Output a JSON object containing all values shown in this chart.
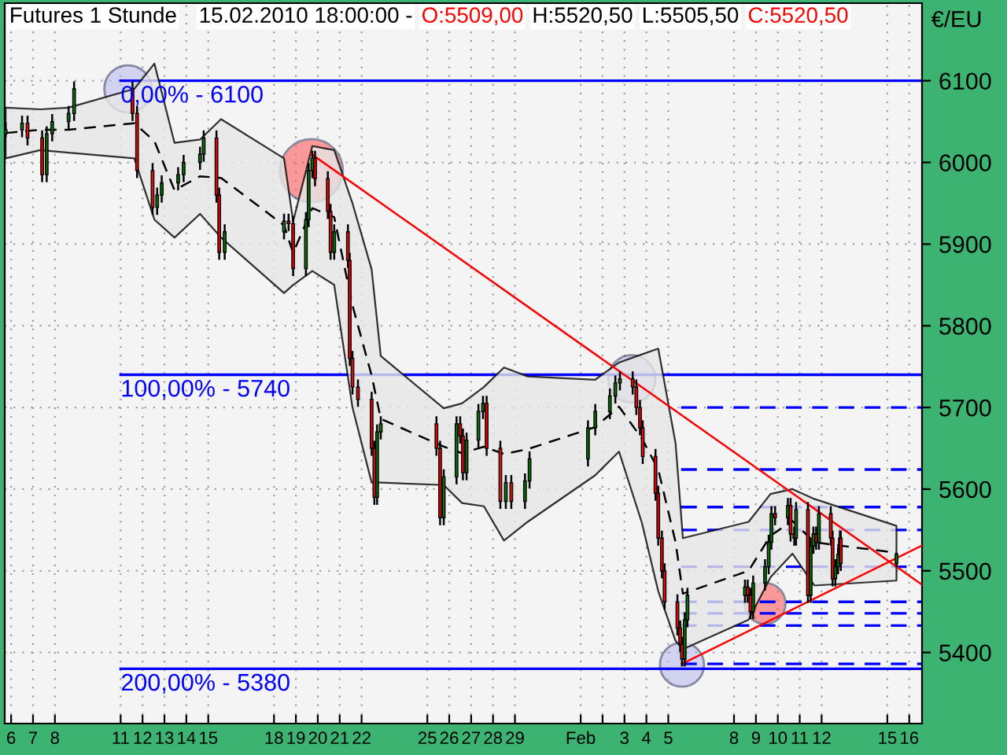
{
  "chart_data": {
    "type": "candlestick",
    "title": "Futures 1 Stunde",
    "subtitle": "15.02.2010 18:00:00 -",
    "annotations": [
      "O:5509,00",
      "H:5520,50",
      "L:5505,50",
      "C:5520,50",
      {
        "text": "0,00% - 6100",
        "x": "2010-01-11",
        "y": 6100
      },
      {
        "text": "100,00% - 5740",
        "x": "2010-01-11",
        "y": 5740
      },
      {
        "text": "200,00% - 5380",
        "x": "2010-01-11",
        "y": 5380
      }
    ],
    "ylabel": "€/EU",
    "x": [
      "2010-01-05T18:00",
      "2010-01-06T12:00",
      "2010-01-06T18:00",
      "2010-01-07T10:00",
      "2010-01-07T15:00",
      "2010-01-07T21:00",
      "2010-01-08T15:00",
      "2010-01-08T21:00",
      "2010-01-11T13:00",
      "2010-01-11T18:00",
      "2010-01-12T11:00",
      "2010-01-12T16:00",
      "2010-01-12T21:00",
      "2010-01-13T15:00",
      "2010-01-13T21:00",
      "2010-01-14T15:00",
      "2010-01-14T19:00",
      "2010-01-15T09:00",
      "2010-01-15T12:00",
      "2010-01-15T18:00",
      "2010-01-18T11:00",
      "2010-01-18T16:00",
      "2010-01-18T21:00",
      "2010-01-19T11:00",
      "2010-01-19T14:00",
      "2010-01-19T18:00",
      "2010-01-19T21:00",
      "2010-01-20T11:00",
      "2010-01-20T14:00",
      "2010-01-20T18:00",
      "2010-01-21T09:00",
      "2010-01-21T11:00",
      "2010-01-21T14:00",
      "2010-01-21T20:00",
      "2010-01-22T11:00",
      "2010-01-22T14:00",
      "2010-01-22T17:00",
      "2010-01-22T21:00",
      "2010-01-25T10:00",
      "2010-01-25T14:00",
      "2010-01-25T18:00",
      "2010-01-26T08:00",
      "2010-01-26T12:00",
      "2010-01-26T15:00",
      "2010-01-26T19:00",
      "2010-01-27T08:00",
      "2010-01-27T13:00",
      "2010-01-27T17:00",
      "2010-01-28T08:00",
      "2010-01-28T14:00",
      "2010-01-28T20:00",
      "2010-01-29T11:00",
      "2010-01-29T16:00",
      "2010-02-01T08:00",
      "2010-02-01T16:00",
      "2010-02-02T08:00",
      "2010-02-02T14:00",
      "2010-02-02T19:00",
      "2010-02-03T09:00",
      "2010-02-03T13:00",
      "2010-02-03T17:00",
      "2010-02-03T20:00",
      "2010-02-04T10:00",
      "2010-02-04T13:00",
      "2010-02-04T17:00",
      "2010-02-04T20:00",
      "2010-02-05T10:00",
      "2010-02-05T13:00",
      "2010-02-05T15:00",
      "2010-02-05T18:00",
      "2010-02-05T21:00",
      "2010-02-08T12:00",
      "2010-02-08T15:00",
      "2010-02-08T18:00",
      "2010-02-08T21:00",
      "2010-02-09T10:00",
      "2010-02-09T14:00",
      "2010-02-09T17:00",
      "2010-02-09T21:00",
      "2010-02-10T11:00",
      "2010-02-10T14:00",
      "2010-02-10T18:00",
      "2010-02-10T20:00",
      "2010-02-11T09:00",
      "2010-02-11T12:00",
      "2010-02-11T15:00",
      "2010-02-11T18:00",
      "2010-02-11T21:00",
      "2010-02-12T10:00",
      "2010-02-12T12:00",
      "2010-02-12T15:00",
      "2010-02-12T18:00",
      "2010-02-12T20:00",
      "2010-02-12T21:00",
      "2010-02-15T10:00"
    ],
    "ohlc": [
      [
        6035,
        6048,
        6032,
        6040
      ],
      [
        6040,
        6056,
        6032,
        6048
      ],
      [
        6048,
        6056,
        6022,
        6030
      ],
      [
        6030,
        6038,
        5977,
        5985
      ],
      [
        5985,
        6043,
        5977,
        6035
      ],
      [
        6035,
        6058,
        6027,
        6050
      ],
      [
        6050,
        6068,
        6042,
        6060
      ],
      [
        6060,
        6098,
        6052,
        6090
      ],
      [
        6090,
        6098,
        6052,
        6060
      ],
      [
        6060,
        6068,
        5982,
        5990
      ],
      [
        5990,
        5998,
        5937,
        5945
      ],
      [
        5945,
        5968,
        5937,
        5960
      ],
      [
        5960,
        5983,
        5952,
        5975
      ],
      [
        5975,
        5993,
        5967,
        5985
      ],
      [
        5985,
        6008,
        5977,
        6000
      ],
      [
        6000,
        6018,
        5992,
        6010
      ],
      [
        6010,
        6038,
        6002,
        6030
      ],
      [
        6030,
        6038,
        5952,
        5960
      ],
      [
        5960,
        5968,
        5882,
        5890
      ],
      [
        5890,
        5923,
        5882,
        5915
      ],
      [
        5915,
        5936,
        5907,
        5928
      ],
      [
        5928,
        5936,
        5917,
        5925
      ],
      [
        5925,
        5933,
        5862,
        5870
      ],
      [
        5870,
        5938,
        5862,
        5930
      ],
      [
        5930,
        5998,
        5922,
        5990
      ],
      [
        5990,
        6013,
        5982,
        6005
      ],
      [
        6005,
        6013,
        5972,
        5980
      ],
      [
        5980,
        5988,
        5932,
        5940
      ],
      [
        5940,
        5948,
        5882,
        5890
      ],
      [
        5890,
        5923,
        5882,
        5915
      ],
      [
        5915,
        5923,
        5872,
        5880
      ],
      [
        5880,
        5888,
        5752,
        5760
      ],
      [
        5760,
        5768,
        5717,
        5725
      ],
      [
        5725,
        5733,
        5702,
        5710
      ],
      [
        5710,
        5718,
        5642,
        5650
      ],
      [
        5650,
        5658,
        5582,
        5590
      ],
      [
        5590,
        5678,
        5582,
        5670
      ],
      [
        5670,
        5688,
        5662,
        5680
      ],
      [
        5680,
        5688,
        5642,
        5650
      ],
      [
        5650,
        5658,
        5557,
        5565
      ],
      [
        5565,
        5623,
        5557,
        5615
      ],
      [
        5615,
        5688,
        5607,
        5680
      ],
      [
        5680,
        5688,
        5657,
        5665
      ],
      [
        5665,
        5673,
        5612,
        5620
      ],
      [
        5620,
        5668,
        5612,
        5660
      ],
      [
        5660,
        5703,
        5652,
        5695
      ],
      [
        5695,
        5713,
        5687,
        5705
      ],
      [
        5705,
        5713,
        5642,
        5650
      ],
      [
        5650,
        5658,
        5577,
        5585
      ],
      [
        5585,
        5616,
        5577,
        5608
      ],
      [
        5608,
        5616,
        5577,
        5585
      ],
      [
        5585,
        5618,
        5577,
        5610
      ],
      [
        5610,
        5645,
        5602,
        5637
      ],
      [
        5637,
        5683,
        5629,
        5675
      ],
      [
        5675,
        5703,
        5667,
        5695
      ],
      [
        5695,
        5722,
        5687,
        5714
      ],
      [
        5714,
        5738,
        5706,
        5730
      ],
      [
        5730,
        5743,
        5722,
        5735
      ],
      [
        5735,
        5743,
        5717,
        5725
      ],
      [
        5725,
        5733,
        5692,
        5700
      ],
      [
        5700,
        5708,
        5667,
        5675
      ],
      [
        5675,
        5683,
        5632,
        5640
      ],
      [
        5640,
        5648,
        5587,
        5595
      ],
      [
        5595,
        5603,
        5532,
        5540
      ],
      [
        5540,
        5548,
        5492,
        5500
      ],
      [
        5500,
        5508,
        5454,
        5462
      ],
      [
        5462,
        5470,
        5422,
        5430
      ],
      [
        5430,
        5438,
        5402,
        5410
      ],
      [
        5410,
        5418,
        5384,
        5392
      ],
      [
        5392,
        5448,
        5384,
        5440
      ],
      [
        5440,
        5478,
        5432,
        5470
      ],
      [
        5470,
        5488,
        5462,
        5480
      ],
      [
        5480,
        5488,
        5462,
        5470
      ],
      [
        5470,
        5478,
        5442,
        5450
      ],
      [
        5450,
        5493,
        5442,
        5485
      ],
      [
        5485,
        5513,
        5477,
        5505
      ],
      [
        5505,
        5543,
        5497,
        5535
      ],
      [
        5535,
        5578,
        5527,
        5570
      ],
      [
        5570,
        5578,
        5557,
        5565
      ],
      [
        5565,
        5588,
        5557,
        5580
      ],
      [
        5580,
        5588,
        5537,
        5545
      ],
      [
        5545,
        5553,
        5532,
        5540
      ],
      [
        5540,
        5583,
        5532,
        5575
      ],
      [
        5575,
        5583,
        5462,
        5470
      ],
      [
        5470,
        5538,
        5462,
        5530
      ],
      [
        5530,
        5553,
        5522,
        5545
      ],
      [
        5545,
        5553,
        5527,
        5535
      ],
      [
        5535,
        5578,
        5527,
        5570
      ],
      [
        5570,
        5578,
        5532,
        5540
      ],
      [
        5540,
        5548,
        5482,
        5490
      ],
      [
        5490,
        5513,
        5482,
        5505
      ],
      [
        5505,
        5528,
        5497,
        5520
      ],
      [
        5520,
        5548,
        5512,
        5540
      ],
      [
        5540,
        5548,
        5501,
        5509
      ],
      [
        5509,
        5520.5,
        5505.5,
        5520.5
      ]
    ],
    "series": [
      {
        "type": "line",
        "color": "#000000",
        "line_style": "dashed",
        "x": [
          "2010-01-05T18:00",
          "2010-01-07T08:00",
          "2010-01-08T15:00",
          "2010-01-11T15:00",
          "2010-01-12T13:00",
          "2010-01-13T11:00",
          "2010-01-14T15:00",
          "2010-01-15T14:00",
          "2010-01-18T11:00",
          "2010-01-18T21:00",
          "2010-01-19T18:00",
          "2010-01-20T18:00",
          "2010-01-21T14:00",
          "2010-01-22T11:00",
          "2010-01-22T21:00",
          "2010-01-25T18:00",
          "2010-01-26T14:00",
          "2010-01-27T14:00",
          "2010-01-28T12:00",
          "2010-01-29T14:00",
          "2010-02-01T16:00",
          "2010-02-02T18:00",
          "2010-02-03T19:00",
          "2010-02-04T13:00",
          "2010-02-05T08:00",
          "2010-02-05T16:00",
          "2010-02-08T16:00",
          "2010-02-09T16:00",
          "2010-02-10T16:00",
          "2010-02-11T16:00",
          "2010-02-15T10:00"
        ],
        "values": [
          6036,
          6040,
          6040,
          6048,
          6026,
          5966,
          5983,
          5981,
          5923,
          5889,
          5944,
          5933,
          5825,
          5739,
          5686,
          5652,
          5644,
          5652,
          5643,
          5649,
          5676,
          5701,
          5662,
          5624,
          5535,
          5472,
          5500,
          5543,
          5561,
          5535,
          5522
        ],
        "upper": [
          6067,
          6065,
          6067,
          6090,
          6121,
          6024,
          6028,
          6053,
          6005,
          5928,
          6020,
          6015,
          5950,
          5869,
          5763,
          5699,
          5705,
          5725,
          5749,
          5738,
          5734,
          5755,
          5765,
          5772,
          5656,
          5540,
          5560,
          5594,
          5600,
          5588,
          5555
        ],
        "lower": [
          6005,
          6015,
          6012,
          6005,
          5930,
          5908,
          5937,
          5908,
          5840,
          5850,
          5867,
          5850,
          5700,
          5608,
          5608,
          5605,
          5583,
          5579,
          5537,
          5560,
          5617,
          5646,
          5559,
          5475,
          5414,
          5404,
          5440,
          5492,
          5521,
          5482,
          5488
        ]
      },
      {
        "type": "line",
        "color": "#ff0000",
        "x": [
          "2010-01-19T16:00",
          "2010-02-16T14:00"
        ],
        "values": [
          6011,
          5483
        ]
      },
      {
        "type": "line",
        "color": "#ff0000",
        "x": [
          "2010-02-05T15:00",
          "2010-02-16T14:00"
        ],
        "values": [
          5386,
          5531
        ]
      }
    ],
    "ref_lines": [
      {
        "axis": "y",
        "value": 6100,
        "color": "#0000ff",
        "line_style": "solid"
      },
      {
        "axis": "y",
        "value": 5740,
        "color": "#0000ff",
        "line_style": "solid"
      },
      {
        "axis": "y",
        "value": 5380,
        "color": "#0000ff",
        "line_style": "solid"
      },
      {
        "axis": "y",
        "value": 5700,
        "color": "#0000ff",
        "line_style": "dashed"
      },
      {
        "axis": "y",
        "value": 5624,
        "color": "#0000ff",
        "line_style": "dashed"
      },
      {
        "axis": "y",
        "value": 5578,
        "color": "#0000ff",
        "line_style": "dashed"
      },
      {
        "axis": "y",
        "value": 5550,
        "color": "#0000ff",
        "line_style": "dashed"
      },
      {
        "axis": "y",
        "value": 5505,
        "color": "#0000ff",
        "line_style": "dashed"
      },
      {
        "axis": "y",
        "value": 5462,
        "color": "#0000ff",
        "line_style": "dashed"
      },
      {
        "axis": "y",
        "value": 5448,
        "color": "#0000ff",
        "line_style": "dashed"
      },
      {
        "axis": "y",
        "value": 5433,
        "color": "#0000ff",
        "line_style": "dashed"
      },
      {
        "axis": "y",
        "value": 5386,
        "color": "#0000ff",
        "line_style": "dashed"
      }
    ],
    "xlim": [
      "2010-01-05T17:00",
      "2010-02-16T14:00"
    ],
    "ylim": [
      5313,
      6195
    ],
    "xticks": [
      {
        "value": "2010-01-06",
        "label": "6"
      },
      {
        "value": "2010-01-07",
        "label": "7"
      },
      {
        "value": "2010-01-08",
        "label": "8"
      },
      {
        "value": "2010-01-11",
        "label": "11"
      },
      {
        "value": "2010-01-12",
        "label": "12"
      },
      {
        "value": "2010-01-13",
        "label": "13"
      },
      {
        "value": "2010-01-14",
        "label": "14"
      },
      {
        "value": "2010-01-15",
        "label": "15"
      },
      {
        "value": "2010-01-18",
        "label": "18"
      },
      {
        "value": "2010-01-19",
        "label": "19"
      },
      {
        "value": "2010-01-20",
        "label": "20"
      },
      {
        "value": "2010-01-21",
        "label": "21"
      },
      {
        "value": "2010-01-22",
        "label": "22"
      },
      {
        "value": "2010-01-25",
        "label": "25"
      },
      {
        "value": "2010-01-26",
        "label": "26"
      },
      {
        "value": "2010-01-27",
        "label": "27"
      },
      {
        "value": "2010-01-28",
        "label": "28"
      },
      {
        "value": "2010-01-29",
        "label": "29"
      },
      {
        "value": "2010-02-01",
        "label": "Feb"
      },
      {
        "value": "2010-02-02",
        "label": null
      },
      {
        "value": "2010-02-03",
        "label": "3"
      },
      {
        "value": "2010-02-04",
        "label": "4"
      },
      {
        "value": "2010-02-05",
        "label": "5"
      },
      {
        "value": "2010-02-08",
        "label": "8"
      },
      {
        "value": "2010-02-09",
        "label": "9"
      },
      {
        "value": "2010-02-10",
        "label": "10"
      },
      {
        "value": "2010-02-11",
        "label": "11"
      },
      {
        "value": "2010-02-12",
        "label": "12"
      },
      {
        "value": "2010-02-15",
        "label": "15"
      },
      {
        "value": "2010-02-16",
        "label": "16"
      }
    ],
    "yticks": [
      5400,
      5500,
      5600,
      5700,
      5800,
      5900,
      6000,
      6100
    ],
    "grid": true
  }
}
